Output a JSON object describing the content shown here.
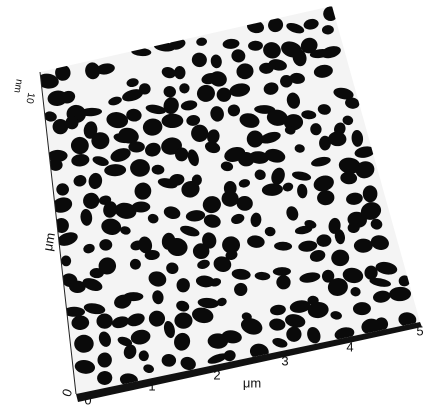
{
  "x_axis": {
    "ticks": [
      "0",
      "1",
      "2",
      "3",
      "4",
      "5"
    ],
    "label": "μm"
  },
  "y_axis": {
    "tick": "0",
    "label": "μm"
  },
  "z_axis": {
    "label": "nm",
    "tick": "10"
  }
}
